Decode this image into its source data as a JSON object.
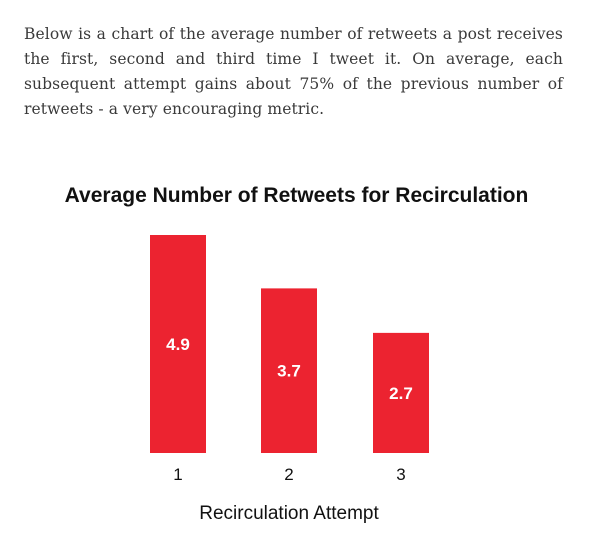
{
  "intro": {
    "text": "Below is a chart of the average number of retweets a post receives the first, second and third time I tweet it. On average, each subsequent attempt gains about 75% of the previous number of retweets - a very encouraging metric."
  },
  "chart_data": {
    "type": "bar",
    "title": "Average Number of Retweets for Recirculation",
    "xlabel": "Recirculation Attempt",
    "ylabel": "",
    "categories": [
      "1",
      "2",
      "3"
    ],
    "values": [
      4.9,
      3.7,
      2.7
    ],
    "data_labels": [
      "4.9",
      "3.7",
      "2.7"
    ],
    "ylim": [
      0,
      4.9
    ],
    "grid": false,
    "legend": "none",
    "bar_color": "#ec2330"
  }
}
